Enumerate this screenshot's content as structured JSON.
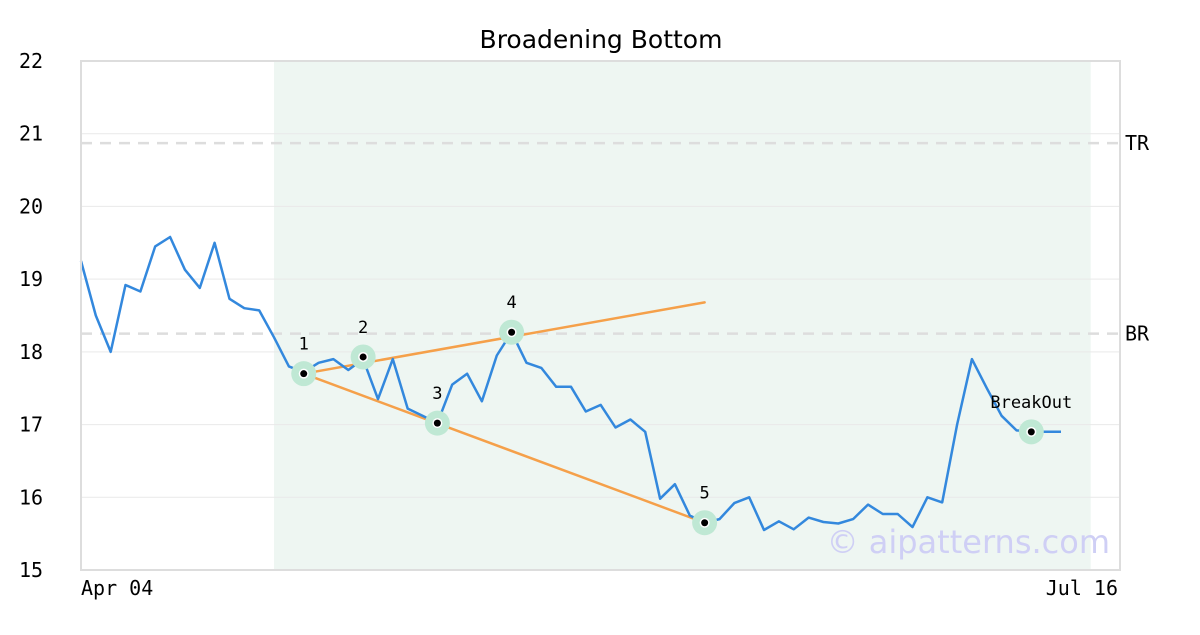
{
  "chart_data": {
    "type": "line",
    "title": "Broadening Bottom",
    "xlabel": "",
    "ylabel": "",
    "ylim": [
      15,
      22
    ],
    "yticks": [
      15,
      16,
      17,
      18,
      19,
      20,
      21,
      22
    ],
    "x_start_label": "Apr 04",
    "x_end_label": "Jul 16",
    "grid": true,
    "colors": {
      "price": "#3388dd",
      "trendline": "#f5a04a",
      "highlight": "#eef6f2",
      "ref_line": "#dddddd",
      "marker_ring": "#bfe8d4",
      "marker_dot": "#000000"
    },
    "series": [
      {
        "values": [
          19.25,
          18.5,
          18.0,
          18.92,
          18.83,
          19.45,
          19.58,
          19.13,
          18.88,
          19.5,
          18.73,
          18.6,
          18.57,
          18.2,
          17.8,
          17.72,
          17.85,
          17.9,
          17.75,
          17.9,
          17.35,
          17.9,
          17.22,
          17.12,
          17.02,
          17.55,
          17.7,
          17.32,
          17.95,
          18.27,
          17.85,
          17.78,
          17.52,
          17.52,
          17.18,
          17.27,
          16.96,
          17.07,
          16.9,
          15.98,
          16.18,
          15.75,
          15.65,
          15.7,
          15.92,
          16.0,
          15.55,
          15.67,
          15.56,
          15.72,
          15.66,
          15.64,
          15.7,
          15.9,
          15.77,
          15.77,
          15.59,
          16.0,
          15.93,
          17.0,
          17.9,
          17.5,
          17.12,
          16.92,
          16.9,
          16.9,
          16.9
        ]
      }
    ],
    "highlight_range": {
      "start_index": 13,
      "end_index": 68
    },
    "reference_lines": [
      {
        "label": "TR",
        "value": 20.87
      },
      {
        "label": "BR",
        "value": 18.25
      }
    ],
    "trendlines": [
      {
        "from_index": 15,
        "from_value": 17.7,
        "to_index": 42,
        "to_value": 18.68
      },
      {
        "from_index": 15,
        "from_value": 17.7,
        "to_index": 42,
        "to_value": 15.65
      }
    ],
    "annotations": [
      {
        "label": "1",
        "index": 15,
        "value": 17.7
      },
      {
        "label": "2",
        "index": 19,
        "value": 17.93
      },
      {
        "label": "3",
        "index": 24,
        "value": 17.02
      },
      {
        "label": "4",
        "index": 29,
        "value": 18.27
      },
      {
        "label": "5",
        "index": 42,
        "value": 15.65
      },
      {
        "label": "BreakOut",
        "index": 64,
        "value": 16.9
      }
    ],
    "watermark": "© aipatterns.com"
  }
}
